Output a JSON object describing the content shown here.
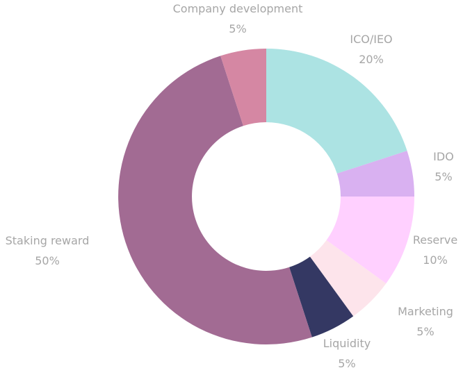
{
  "chart_data": {
    "type": "pie",
    "variant": "donut",
    "slices": [
      {
        "label": "ICO/IEO",
        "value": 20,
        "display": "20%",
        "color": "#ace3e3"
      },
      {
        "label": "IDO",
        "value": 5,
        "display": "5%",
        "color": "#d9b1f1"
      },
      {
        "label": "Reserve",
        "value": 10,
        "display": "10%",
        "color": "#ffd0ff"
      },
      {
        "label": "Marketing",
        "value": 5,
        "display": "5%",
        "color": "#fde4eb"
      },
      {
        "label": "Liquidity",
        "value": 5,
        "display": "5%",
        "color": "#343863"
      },
      {
        "label": "Staking reward",
        "value": 50,
        "display": "50%",
        "color": "#a26b93"
      },
      {
        "label": "Company development",
        "value": 5,
        "display": "5%",
        "color": "#d587a3"
      }
    ]
  }
}
